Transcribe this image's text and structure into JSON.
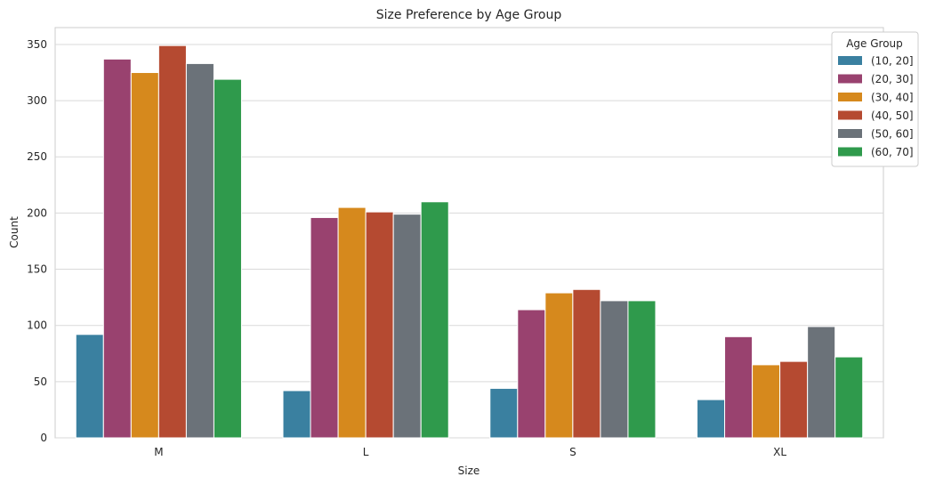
{
  "chart_data": {
    "type": "bar",
    "title": "Size Preference by Age Group",
    "xlabel": "Size",
    "ylabel": "Count",
    "categories": [
      "M",
      "L",
      "S",
      "XL"
    ],
    "ylim": [
      0,
      365
    ],
    "yticks": [
      0,
      50,
      100,
      150,
      200,
      250,
      300,
      350
    ],
    "grid": true,
    "legend": {
      "title": "Age Group",
      "placement": "top-right"
    },
    "series": [
      {
        "name": "(10, 20]",
        "color": "#3a80a0",
        "values": [
          92,
          42,
          44,
          34
        ]
      },
      {
        "name": "(20, 30]",
        "color": "#99426f",
        "values": [
          337,
          196,
          114,
          90
        ]
      },
      {
        "name": "(30, 40]",
        "color": "#d6891d",
        "values": [
          325,
          205,
          129,
          65
        ]
      },
      {
        "name": "(40, 50]",
        "color": "#b54a31",
        "values": [
          349,
          201,
          132,
          68
        ]
      },
      {
        "name": "(50, 60]",
        "color": "#6b7279",
        "values": [
          333,
          199,
          122,
          99
        ]
      },
      {
        "name": "(60, 70]",
        "color": "#2f9a4c",
        "values": [
          319,
          210,
          122,
          72
        ]
      }
    ]
  }
}
